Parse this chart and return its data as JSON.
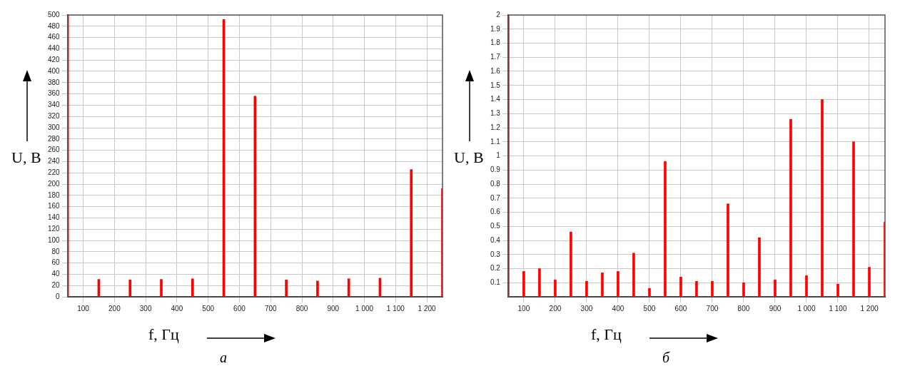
{
  "chart_data": [
    {
      "type": "bar",
      "title": "а",
      "xlabel": "f, Гц",
      "ylabel": "U, В",
      "color": "#ff0000",
      "x": [
        50,
        150,
        250,
        350,
        450,
        550,
        650,
        750,
        850,
        950,
        1050,
        1150,
        1250
      ],
      "values": [
        500,
        31,
        30,
        31,
        32,
        492,
        356,
        30,
        28,
        32,
        33,
        226,
        192
      ],
      "xlim": [
        50,
        1250
      ],
      "xticks": [
        100,
        200,
        300,
        400,
        500,
        600,
        700,
        800,
        900,
        {
          "value": 1000,
          "label": "1 000"
        },
        {
          "value": 1100,
          "label": "1 100"
        },
        {
          "value": 1200,
          "label": "1 200"
        }
      ],
      "ylim": [
        0,
        500
      ],
      "yticks": [
        0,
        20,
        40,
        60,
        80,
        100,
        120,
        140,
        160,
        180,
        200,
        220,
        240,
        260,
        280,
        300,
        320,
        340,
        360,
        380,
        400,
        420,
        440,
        460,
        480,
        500
      ],
      "grid": true
    },
    {
      "type": "bar",
      "title": "б",
      "xlabel": "f, Гц",
      "ylabel": "U, В",
      "color": "#ff0000",
      "x": [
        50,
        100,
        150,
        200,
        250,
        300,
        350,
        400,
        450,
        500,
        550,
        600,
        650,
        700,
        750,
        800,
        850,
        900,
        950,
        1000,
        1050,
        1100,
        1150,
        1200,
        1250
      ],
      "values": [
        2,
        0.18,
        0.2,
        0.12,
        0.46,
        0.11,
        0.17,
        0.18,
        0.31,
        0.06,
        0.96,
        0.14,
        0.11,
        0.11,
        0.66,
        0.1,
        0.42,
        0.12,
        1.26,
        0.15,
        1.4,
        0.09,
        1.1,
        0.21,
        0.53
      ],
      "xlim": [
        50,
        1250
      ],
      "xticks": [
        100,
        200,
        300,
        400,
        500,
        600,
        700,
        800,
        900,
        {
          "value": 1000,
          "label": "1 000"
        },
        {
          "value": 1100,
          "label": "1 100"
        },
        {
          "value": 1200,
          "label": "1 200"
        }
      ],
      "ylim": [
        0,
        2
      ],
      "yticks": [
        0.1,
        0.2,
        0.3,
        0.4,
        0.5,
        0.6,
        0.7,
        0.8,
        0.9,
        1,
        1.1,
        1.2,
        1.3,
        1.4,
        1.5,
        1.6,
        1.7,
        1.8,
        1.9,
        2
      ],
      "grid": true
    }
  ]
}
